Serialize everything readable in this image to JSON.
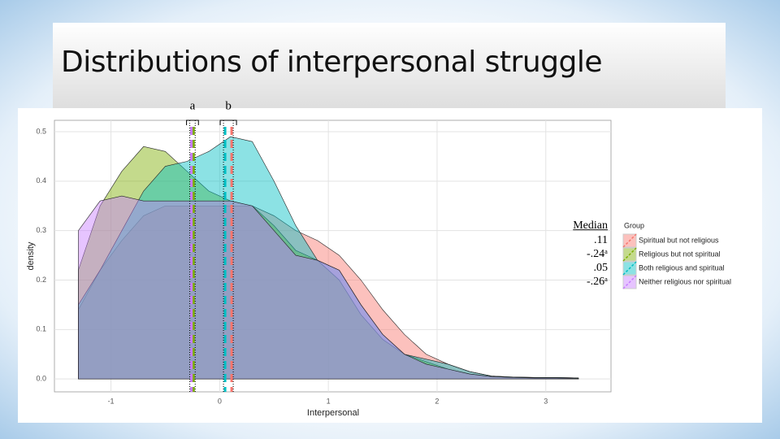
{
  "chart_data": {
    "type": "area",
    "title": "Distributions of interpersonal struggle",
    "x_label": "Interpersonal",
    "y_label": "density",
    "legend_title": "Group",
    "median_title": "Median",
    "annotations": [
      "a",
      "b"
    ],
    "x": [
      -1.3,
      -1.1,
      -0.9,
      -0.7,
      -0.5,
      -0.3,
      -0.1,
      0.1,
      0.3,
      0.5,
      0.7,
      0.9,
      1.1,
      1.3,
      1.5,
      1.7,
      1.9,
      2.1,
      2.3,
      2.5,
      2.7,
      2.9,
      3.1,
      3.3
    ],
    "series": [
      {
        "name": "Spiritual but not religious",
        "color": "#F8766D",
        "median": 0.11,
        "median_label": ".11",
        "values": [
          0.14,
          0.22,
          0.28,
          0.33,
          0.35,
          0.35,
          0.35,
          0.35,
          0.35,
          0.33,
          0.3,
          0.28,
          0.25,
          0.2,
          0.14,
          0.09,
          0.05,
          0.03,
          0.015,
          0.006,
          0.004,
          0.003,
          0.003,
          0.002
        ]
      },
      {
        "name": "Religious but not spiritual",
        "color": "#7CAE00",
        "median": -0.24,
        "median_label": "-.24ᵃ",
        "values": [
          0.22,
          0.35,
          0.42,
          0.47,
          0.46,
          0.42,
          0.38,
          0.36,
          0.35,
          0.31,
          0.26,
          0.24,
          0.2,
          0.13,
          0.08,
          0.05,
          0.035,
          0.02,
          0.01,
          0.005,
          0.003,
          0.002,
          0.002,
          0.001
        ]
      },
      {
        "name": "Both religious and spiritual",
        "color": "#00BFC4",
        "median": 0.05,
        "median_label": ".05",
        "values": [
          0.15,
          0.22,
          0.3,
          0.38,
          0.43,
          0.44,
          0.46,
          0.49,
          0.48,
          0.4,
          0.31,
          0.24,
          0.22,
          0.15,
          0.09,
          0.05,
          0.04,
          0.03,
          0.015,
          0.006,
          0.004,
          0.003,
          0.003,
          0.002
        ]
      },
      {
        "name": "Neither religious nor spiritual",
        "color": "#C77CFF",
        "median": -0.26,
        "median_label": "-.26ᵃ",
        "values": [
          0.3,
          0.36,
          0.37,
          0.36,
          0.36,
          0.36,
          0.36,
          0.36,
          0.35,
          0.3,
          0.25,
          0.24,
          0.22,
          0.15,
          0.09,
          0.05,
          0.03,
          0.02,
          0.01,
          0.005,
          0.003,
          0.002,
          0.002,
          0.001
        ]
      }
    ],
    "xlim": [
      -1.52,
      3.6
    ],
    "xticks": [
      -1,
      0,
      1,
      2,
      3
    ],
    "ylim": [
      -0.026,
      0.523
    ],
    "yticks": [
      {
        "value": 0,
        "label": "0.0"
      },
      0.1,
      0.2,
      0.3,
      0.4,
      0.5
    ],
    "grid": true
  }
}
